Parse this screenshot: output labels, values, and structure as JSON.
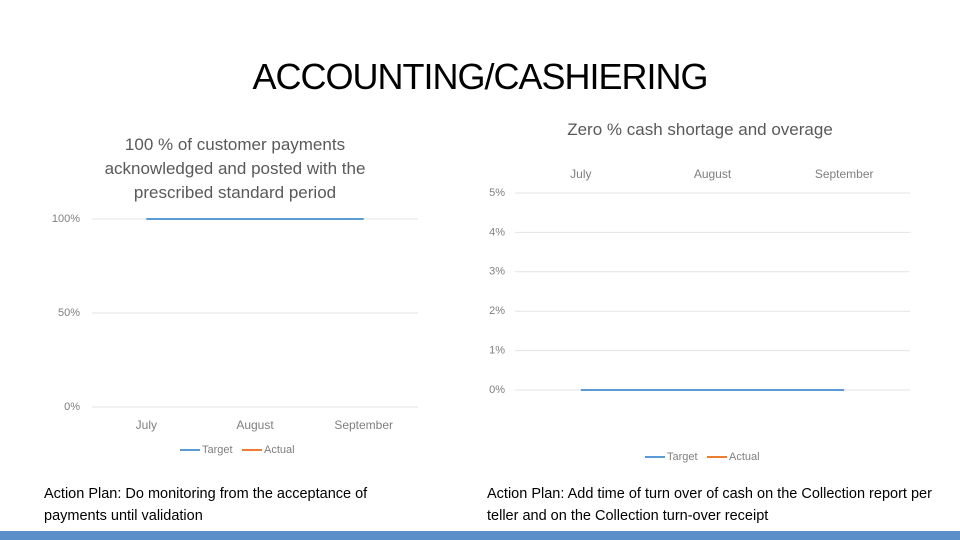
{
  "header": {
    "title": "ACCOUNTING/CASHIERING"
  },
  "chart_data": [
    {
      "type": "line",
      "title": "100 % of customer payments acknowledged and posted with the prescribed standard period",
      "categories": [
        "July",
        "August",
        "September"
      ],
      "series": [
        {
          "name": "Target",
          "color": "#5b9bd5",
          "values": [
            100,
            100,
            100
          ]
        },
        {
          "name": "Actual",
          "color": "#ed7d31",
          "values": [
            null,
            null,
            null
          ]
        }
      ],
      "ylim": [
        0,
        100
      ],
      "yticks": [
        {
          "value": 0,
          "label": "0%"
        },
        {
          "value": 50,
          "label": "50%"
        },
        {
          "value": 100,
          "label": "100%"
        }
      ],
      "grid": true,
      "xaxis": "bottom",
      "legend": "bottom"
    },
    {
      "type": "line",
      "title": "Zero % cash shortage and overage",
      "categories": [
        "July",
        "August",
        "September"
      ],
      "series": [
        {
          "name": "Target",
          "color": "#5b9bd5",
          "values": [
            0,
            0,
            0
          ]
        },
        {
          "name": "Actual",
          "color": "#ed7d31",
          "values": [
            null,
            null,
            null
          ]
        }
      ],
      "ylim": [
        0,
        5
      ],
      "yticks": [
        {
          "value": 0,
          "label": "0%"
        },
        {
          "value": 1,
          "label": "1%"
        },
        {
          "value": 2,
          "label": "2%"
        },
        {
          "value": 3,
          "label": "3%"
        },
        {
          "value": 4,
          "label": "4%"
        },
        {
          "value": 5,
          "label": "5%"
        }
      ],
      "grid": true,
      "xaxis": "top",
      "legend": "bottom"
    }
  ],
  "notes": [
    "Action Plan: Do monitoring from the acceptance of payments until validation",
    "Action Plan: Add time of turn over of cash on the Collection report per teller and on the Collection turn-over receipt"
  ]
}
